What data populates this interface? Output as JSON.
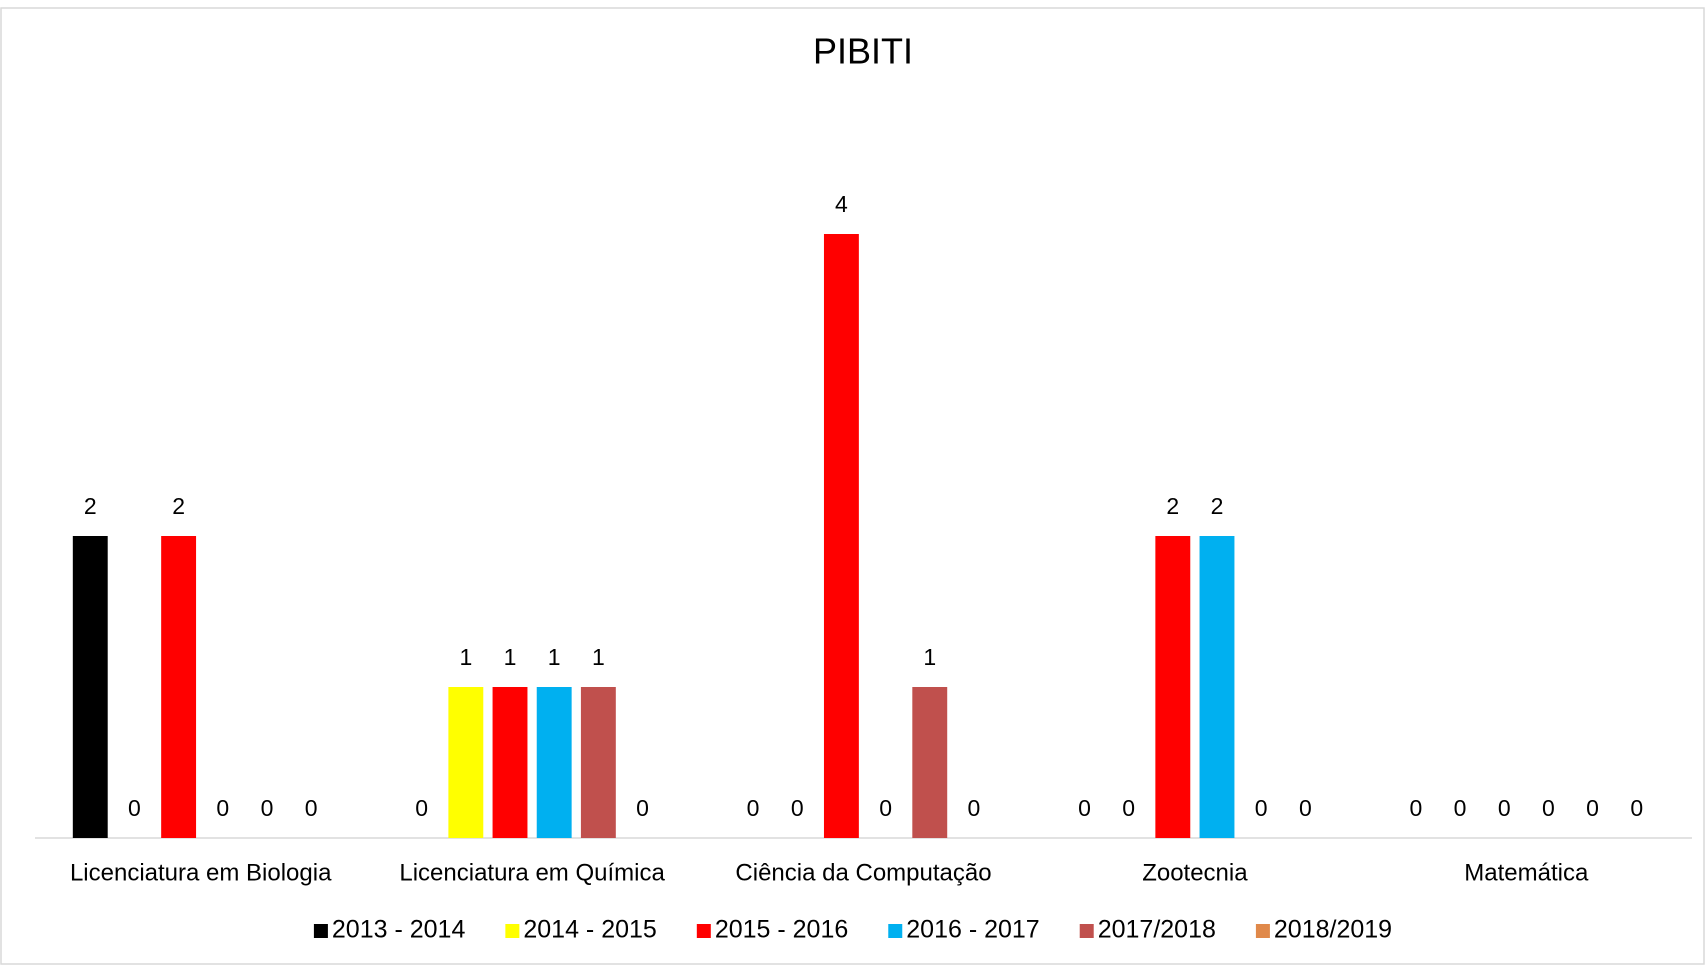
{
  "chart_data": {
    "type": "bar",
    "title": "PIBITI",
    "categories": [
      "Licenciatura em Biologia",
      "Licenciatura em Química",
      "Ciência da Computação",
      "Zootecnia",
      "Matemática"
    ],
    "series": [
      {
        "name": "2013 - 2014",
        "color": "#000000",
        "values": [
          2,
          0,
          0,
          0,
          0
        ]
      },
      {
        "name": "2014 - 2015",
        "color": "#ffff00",
        "values": [
          0,
          1,
          0,
          0,
          0
        ]
      },
      {
        "name": "2015 - 2016",
        "color": "#ff0000",
        "values": [
          2,
          1,
          4,
          2,
          0
        ]
      },
      {
        "name": "2016 - 2017",
        "color": "#00b0f0",
        "values": [
          0,
          1,
          0,
          2,
          0
        ]
      },
      {
        "name": "2017/2018",
        "color": "#c0504d",
        "values": [
          0,
          1,
          1,
          0,
          0
        ]
      },
      {
        "name": "2018/2019",
        "color": "#e0894a",
        "values": [
          0,
          0,
          0,
          0,
          0
        ]
      }
    ],
    "legend": "bottom",
    "grid": false
  }
}
